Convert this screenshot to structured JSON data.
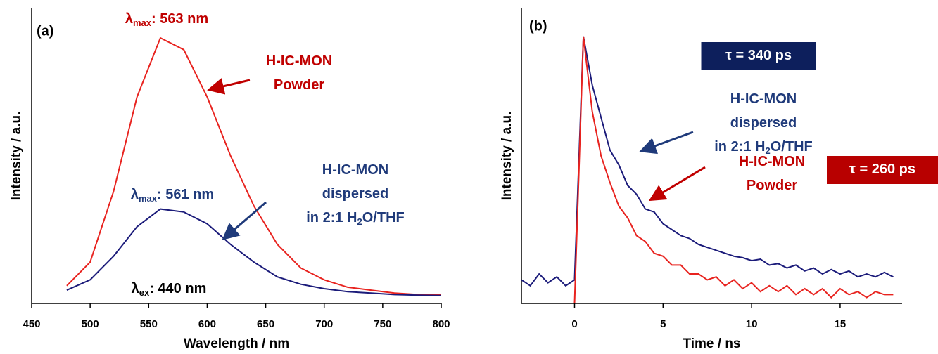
{
  "chart_data": [
    {
      "type": "line",
      "panel_label": "(a)",
      "xlabel": "Wavelength / nm",
      "ylabel": "Intensity / a.u.",
      "xlim": [
        450,
        800
      ],
      "xticks": [
        450,
        500,
        550,
        600,
        650,
        700,
        750,
        800
      ],
      "ylim": [
        0,
        1
      ],
      "x": [
        480,
        500,
        520,
        540,
        560,
        580,
        600,
        620,
        640,
        660,
        680,
        700,
        720,
        740,
        760,
        780,
        800
      ],
      "series": [
        {
          "name": "H-IC-MON Powder",
          "color": "#e8231f",
          "values": [
            0.06,
            0.14,
            0.38,
            0.7,
            0.9,
            0.86,
            0.7,
            0.5,
            0.33,
            0.2,
            0.12,
            0.08,
            0.055,
            0.045,
            0.035,
            0.03,
            0.03
          ]
        },
        {
          "name": "H-IC-MON dispersed in 2:1 H2O/THF",
          "color": "#1b1b7a",
          "values": [
            0.045,
            0.08,
            0.16,
            0.26,
            0.32,
            0.31,
            0.27,
            0.2,
            0.14,
            0.09,
            0.065,
            0.05,
            0.04,
            0.035,
            0.03,
            0.028,
            0.027
          ]
        }
      ],
      "annotations": [
        {
          "color": "#c00000",
          "lines": [
            [
              {
                "text": "λ"
              },
              {
                "sub": "max"
              },
              {
                "text": ": 563 nm"
              }
            ]
          ]
        },
        {
          "color": "#c00000",
          "lines": [
            [
              {
                "text": "H-IC-MON"
              }
            ],
            [
              {
                "text": "Powder"
              }
            ]
          ]
        },
        {
          "color": "#1f3a7a",
          "lines": [
            [
              {
                "text": "λ"
              },
              {
                "sub": "max"
              },
              {
                "text": ": 561 nm"
              }
            ]
          ]
        },
        {
          "color": "#1f3a7a",
          "lines": [
            [
              {
                "text": "H-IC-MON"
              }
            ],
            [
              {
                "text": "dispersed"
              }
            ],
            [
              {
                "text": "in 2:1 H"
              },
              {
                "sub": "2"
              },
              {
                "text": "O/THF"
              }
            ]
          ]
        },
        {
          "color": "#000000",
          "lines": [
            [
              {
                "text": "λ"
              },
              {
                "sub": "ex"
              },
              {
                "text": ":  440 nm"
              }
            ]
          ]
        }
      ]
    },
    {
      "type": "line",
      "panel_label": "(b)",
      "xlabel": "Time / ns",
      "ylabel": "Intensity / a.u.",
      "xlim": [
        -3,
        18.5
      ],
      "xticks": [
        0,
        5,
        10,
        15
      ],
      "ylim": [
        0,
        1
      ],
      "x": [
        -3,
        -2.5,
        -2,
        -1.5,
        -1,
        -0.5,
        0,
        0.5,
        1,
        1.5,
        2,
        2.5,
        3,
        3.5,
        4,
        4.5,
        5,
        5.5,
        6,
        6.5,
        7,
        7.5,
        8,
        8.5,
        9,
        9.5,
        10,
        10.5,
        11,
        11.5,
        12,
        12.5,
        13,
        13.5,
        14,
        14.5,
        15,
        15.5,
        16,
        16.5,
        17,
        17.5,
        18
      ],
      "series": [
        {
          "name": "H-IC-MON dispersed in 2:1 H2O/THF",
          "color": "#1b1b7a",
          "values": [
            0.08,
            0.06,
            0.1,
            0.07,
            0.09,
            0.06,
            0.08,
            0.905,
            0.74,
            0.63,
            0.52,
            0.47,
            0.4,
            0.37,
            0.32,
            0.31,
            0.27,
            0.25,
            0.23,
            0.22,
            0.2,
            0.19,
            0.18,
            0.17,
            0.16,
            0.155,
            0.145,
            0.15,
            0.13,
            0.135,
            0.12,
            0.13,
            0.11,
            0.12,
            0.1,
            0.115,
            0.1,
            0.11,
            0.09,
            0.1,
            0.09,
            0.105,
            0.09
          ]
        },
        {
          "name": "H-IC-MON Powder",
          "color": "#e8231f",
          "values": [
            null,
            null,
            null,
            null,
            null,
            null,
            0,
            0.905,
            0.65,
            0.5,
            0.41,
            0.33,
            0.29,
            0.23,
            0.21,
            0.17,
            0.16,
            0.13,
            0.13,
            0.1,
            0.1,
            0.08,
            0.09,
            0.06,
            0.08,
            0.05,
            0.07,
            0.04,
            0.06,
            0.04,
            0.06,
            0.03,
            0.05,
            0.03,
            0.05,
            0.02,
            0.05,
            0.03,
            0.04,
            0.02,
            0.04,
            0.03,
            0.03
          ]
        }
      ],
      "annotations": [
        {
          "color": "#ffffff",
          "box": "#0d1f5c",
          "lines": [
            [
              {
                "text": "τ = 340 ps"
              }
            ]
          ]
        },
        {
          "color": "#1f3a7a",
          "lines": [
            [
              {
                "text": "H-IC-MON"
              }
            ],
            [
              {
                "text": "dispersed"
              }
            ],
            [
              {
                "text": "in 2:1 H"
              },
              {
                "sub": "2"
              },
              {
                "text": "O/THF"
              }
            ]
          ]
        },
        {
          "color": "#c00000",
          "lines": [
            [
              {
                "text": "H-IC-MON"
              }
            ],
            [
              {
                "text": "Powder"
              }
            ]
          ]
        },
        {
          "color": "#ffffff",
          "box": "#b80000",
          "lines": [
            [
              {
                "text": "τ = 260 ps"
              }
            ]
          ]
        }
      ]
    }
  ]
}
